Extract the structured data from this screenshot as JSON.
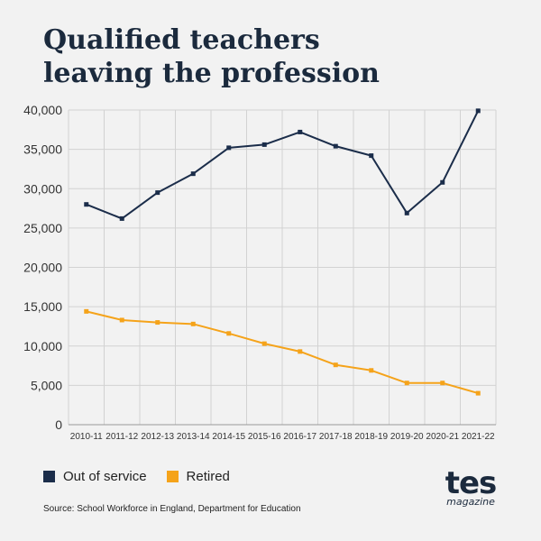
{
  "title_line1": "Qualified teachers",
  "title_line2": "leaving the profession",
  "legend": [
    {
      "label": "Out of service",
      "color": "#1b2d4a"
    },
    {
      "label": "Retired",
      "color": "#f5a31a"
    }
  ],
  "source": "Source: School Workforce in England,  Department for Education",
  "logo": {
    "word": "tes",
    "sub": "magazine"
  },
  "chart_data": {
    "type": "line",
    "title": "Qualified teachers leaving the profession",
    "categories": [
      "2010-11",
      "2011-12",
      "2012-13",
      "2013-14",
      "2014-15",
      "2015-16",
      "2016-17",
      "2017-18",
      "2018-19",
      "2019-20",
      "2020-21",
      "2021-22"
    ],
    "series": [
      {
        "name": "Out of service",
        "color": "#1b2d4a",
        "values": [
          28000,
          26200,
          29500,
          31900,
          35200,
          35600,
          37200,
          35400,
          34200,
          26900,
          30800,
          39900
        ]
      },
      {
        "name": "Retired",
        "color": "#f5a31a",
        "values": [
          14400,
          13300,
          13000,
          12800,
          11600,
          10300,
          9300,
          7600,
          6900,
          5300,
          5300,
          4000
        ]
      }
    ],
    "ylim": [
      0,
      40000
    ],
    "yticks": [
      0,
      5000,
      10000,
      15000,
      20000,
      25000,
      30000,
      35000,
      40000
    ],
    "ytick_labels": [
      "0",
      "5,000",
      "10,000",
      "15,000",
      "20,000",
      "25,000",
      "30,000",
      "35,000",
      "40,000"
    ],
    "grid": true,
    "legend_position": "bottom-left"
  }
}
